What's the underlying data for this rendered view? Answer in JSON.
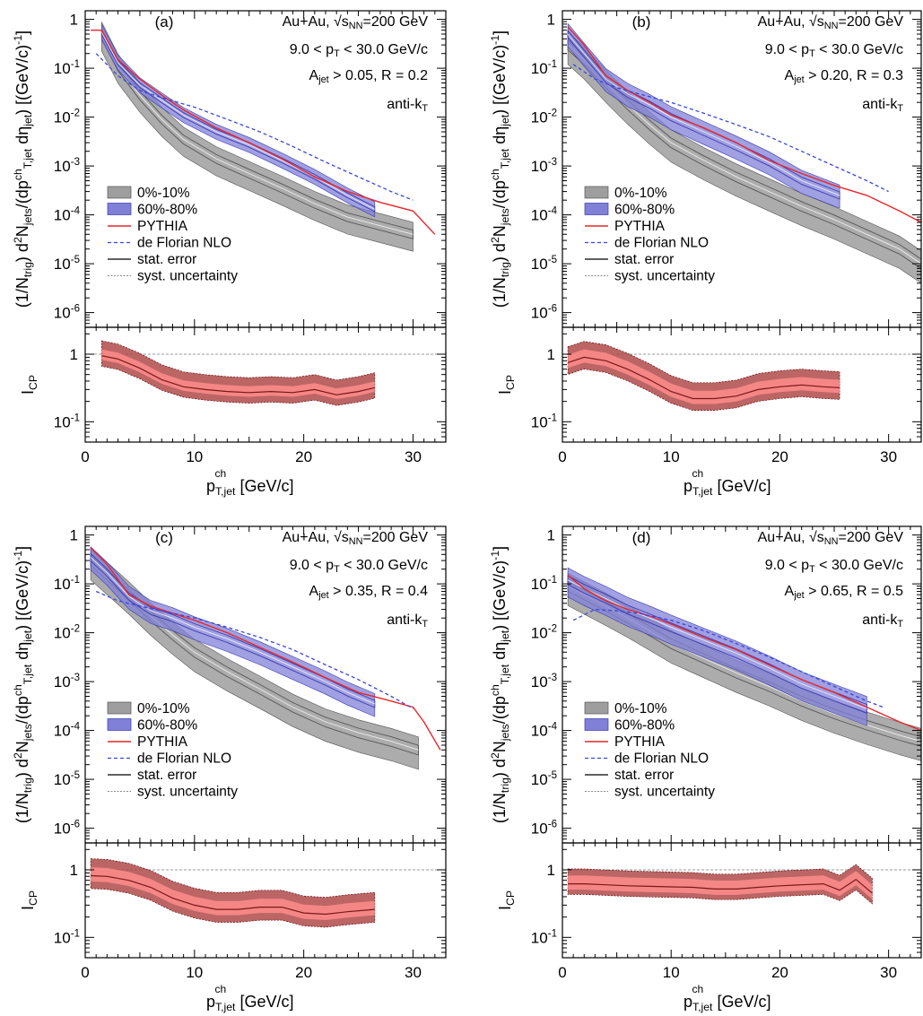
{
  "figure": {
    "ylabel_upper": "(1/N_trig) d²N_jets/(dp^ch_T,jet dη_jet) [(GeV/c)⁻¹]",
    "ylabel_lower": "I_CP",
    "xlabel": "p^ch_T,jet [GeV/c]"
  },
  "legend": [
    "0%-10%",
    "60%-80%",
    "PYTHIA",
    "de Florian NLO",
    "stat. error",
    "syst. uncertainty"
  ],
  "colors": {
    "central": "#555555",
    "central_band": "#9e9e9e",
    "peripheral": "#3a3ab0",
    "peripheral_band": "#8080d8",
    "pythia": "#e8262a",
    "nlo": "#3a46e0",
    "icp_line": "#7a1818",
    "icp_band_dark": "#b04a4a",
    "icp_band_light": "#ff8c8c"
  },
  "chart_data": [
    {
      "type": "line",
      "panel": "(a)",
      "annotations": [
        "Au+Au, √s_NN=200 GeV",
        "9.0 < p_T^trig < 30.0 GeV/c",
        "A_jet > 0.05, R = 0.2",
        "anti-k_T"
      ],
      "xlim": [
        0,
        33
      ],
      "ylim_upper": [
        5e-07,
        1.5
      ],
      "ylog_upper": true,
      "ylim_lower": [
        0.05,
        2.5
      ],
      "ylog_lower": true,
      "xticks": [
        0,
        10,
        20,
        30
      ],
      "series": [
        {
          "name": "0%-10%",
          "x": [
            1.5,
            3,
            5,
            7,
            9,
            12,
            15,
            18,
            21,
            24,
            27,
            30
          ],
          "y": [
            0.5,
            0.11,
            0.028,
            0.009,
            0.0035,
            0.0014,
            0.0007,
            0.00035,
            0.00017,
            9e-05,
            6e-05,
            4e-05
          ],
          "syst_frac": 0.55
        },
        {
          "name": "60%-80%",
          "x": [
            1.5,
            3,
            5,
            7,
            9,
            12,
            15,
            18,
            21,
            24,
            26.5
          ],
          "y": [
            0.55,
            0.13,
            0.045,
            0.022,
            0.011,
            0.005,
            0.0027,
            0.0013,
            0.0006,
            0.00025,
            0.00013
          ],
          "syst_frac": 0.3
        },
        {
          "name": "PYTHIA",
          "x": [
            0.5,
            1.5,
            3,
            5,
            7,
            9,
            12,
            15,
            18,
            21,
            24,
            27,
            30,
            32
          ],
          "y": [
            0.6,
            0.6,
            0.15,
            0.06,
            0.028,
            0.014,
            0.006,
            0.003,
            0.0014,
            0.0006,
            0.0003,
            0.00018,
            0.00012,
            4e-05
          ]
        },
        {
          "name": "de Florian NLO",
          "x": [
            1,
            3,
            5,
            7,
            10,
            13,
            16,
            19,
            22,
            25,
            28,
            30
          ],
          "y": [
            0.2,
            0.07,
            0.035,
            0.025,
            0.016,
            0.009,
            0.005,
            0.0025,
            0.0012,
            0.0006,
            0.0003,
            0.0002
          ]
        }
      ],
      "icp": {
        "x": [
          1.5,
          3,
          5,
          7,
          9,
          11,
          13,
          15,
          17,
          19,
          21,
          23,
          25,
          26.5
        ],
        "y": [
          0.95,
          0.85,
          0.62,
          0.42,
          0.33,
          0.3,
          0.28,
          0.27,
          0.28,
          0.27,
          0.3,
          0.25,
          0.28,
          0.32
        ],
        "frac_outer": 0.55,
        "frac_inner": 0.22
      }
    },
    {
      "type": "line",
      "panel": "(b)",
      "annotations": [
        "Au+Au, √s_NN=200 GeV",
        "9.0 < p_T^trig < 30.0 GeV/c",
        "A_jet > 0.20, R = 0.3",
        "anti-k_T"
      ],
      "xlim": [
        0,
        33
      ],
      "ylim_upper": [
        5e-07,
        1.5
      ],
      "ylog_upper": true,
      "ylim_lower": [
        0.05,
        2.5
      ],
      "ylog_lower": true,
      "xticks": [
        0,
        10,
        20,
        30
      ],
      "series": [
        {
          "name": "0%-10%",
          "x": [
            0.5,
            2,
            4,
            6,
            8,
            10,
            13,
            16,
            19,
            22,
            25,
            28,
            31,
            33
          ],
          "y": [
            0.3,
            0.15,
            0.05,
            0.018,
            0.007,
            0.003,
            0.0013,
            0.0006,
            0.0003,
            0.00015,
            8e-05,
            4e-05,
            2e-05,
            1e-05
          ],
          "syst_frac": 0.6
        },
        {
          "name": "60%-80%",
          "x": [
            0.5,
            2,
            4,
            6,
            8,
            10,
            13,
            16,
            19,
            22,
            25.5
          ],
          "y": [
            0.5,
            0.2,
            0.06,
            0.03,
            0.018,
            0.01,
            0.005,
            0.0025,
            0.0012,
            0.0005,
            0.00025
          ],
          "syst_frac": 0.45
        },
        {
          "name": "PYTHIA",
          "x": [
            0.5,
            2,
            4,
            6,
            8,
            10,
            13,
            16,
            19,
            22,
            25,
            28,
            31,
            33
          ],
          "y": [
            0.7,
            0.3,
            0.07,
            0.035,
            0.02,
            0.011,
            0.006,
            0.003,
            0.0013,
            0.0007,
            0.0004,
            0.00025,
            0.00012,
            7e-05
          ]
        },
        {
          "name": "de Florian NLO",
          "x": [
            1,
            3,
            5,
            7,
            10,
            13,
            16,
            19,
            22,
            25,
            28,
            30
          ],
          "y": [
            0.12,
            0.06,
            0.04,
            0.03,
            0.02,
            0.012,
            0.007,
            0.004,
            0.002,
            0.001,
            0.0005,
            0.0003
          ]
        }
      ],
      "icp": {
        "x": [
          0.5,
          2,
          4,
          6,
          8,
          10,
          12,
          14,
          16,
          18,
          20,
          22,
          24,
          25.5
        ],
        "y": [
          0.75,
          0.9,
          0.8,
          0.6,
          0.42,
          0.28,
          0.22,
          0.22,
          0.24,
          0.3,
          0.33,
          0.35,
          0.33,
          0.32
        ],
        "frac_outer": 0.6,
        "frac_inner": 0.28
      }
    },
    {
      "type": "line",
      "panel": "(c)",
      "annotations": [
        "Au+Au, √s_NN=200 GeV",
        "9.0 < p_T^trig < 30.0 GeV/c",
        "A_jet > 0.35, R = 0.4",
        "anti-k_T"
      ],
      "xlim": [
        0,
        33
      ],
      "ylim_upper": [
        5e-07,
        1.5
      ],
      "ylog_upper": true,
      "ylim_lower": [
        0.05,
        2.5
      ],
      "ylog_lower": true,
      "xticks": [
        0,
        10,
        20,
        30
      ],
      "series": [
        {
          "name": "0%-10%",
          "x": [
            0.5,
            2,
            4,
            6,
            8,
            10,
            13,
            16,
            19,
            22,
            25,
            28,
            30.5
          ],
          "y": [
            0.3,
            0.15,
            0.06,
            0.022,
            0.009,
            0.004,
            0.0016,
            0.0007,
            0.0003,
            0.00015,
            9e-05,
            6e-05,
            4e-05
          ],
          "syst_frac": 0.6
        },
        {
          "name": "60%-80%",
          "x": [
            0.5,
            2,
            4,
            6,
            8,
            10,
            13,
            16,
            19,
            22,
            24,
            26.5
          ],
          "y": [
            0.35,
            0.17,
            0.055,
            0.028,
            0.02,
            0.013,
            0.0075,
            0.004,
            0.002,
            0.001,
            0.0006,
            0.00035
          ],
          "syst_frac": 0.45
        },
        {
          "name": "PYTHIA",
          "x": [
            0.5,
            2,
            4,
            6,
            8,
            10,
            13,
            16,
            19,
            22,
            25,
            28,
            30,
            31,
            32.5
          ],
          "y": [
            0.55,
            0.25,
            0.06,
            0.035,
            0.025,
            0.018,
            0.01,
            0.005,
            0.0025,
            0.0012,
            0.0006,
            0.0004,
            0.0003,
            0.00015,
            4e-05
          ]
        },
        {
          "name": "de Florian NLO",
          "x": [
            1,
            3,
            5,
            7,
            10,
            13,
            16,
            19,
            22,
            25,
            28,
            30
          ],
          "y": [
            0.07,
            0.045,
            0.035,
            0.028,
            0.02,
            0.013,
            0.008,
            0.0045,
            0.0022,
            0.0011,
            0.0005,
            0.00028
          ]
        }
      ],
      "icp": {
        "x": [
          0.5,
          2,
          4,
          6,
          8,
          10,
          12,
          14,
          16,
          18,
          20,
          22,
          24,
          26.5
        ],
        "y": [
          0.82,
          0.8,
          0.7,
          0.55,
          0.38,
          0.3,
          0.26,
          0.26,
          0.28,
          0.28,
          0.23,
          0.22,
          0.24,
          0.26
        ],
        "frac_outer": 0.65,
        "frac_inner": 0.3
      }
    },
    {
      "type": "line",
      "panel": "(d)",
      "annotations": [
        "Au+Au, √s_NN=200 GeV",
        "9.0 < p_T^trig < 30.0 GeV/c",
        "A_jet > 0.65, R = 0.5",
        "anti-k_T"
      ],
      "xlim": [
        0,
        33
      ],
      "ylim_upper": [
        5e-07,
        1.5
      ],
      "ylog_upper": true,
      "ylim_lower": [
        0.05,
        2.5
      ],
      "ylog_lower": true,
      "xticks": [
        0,
        10,
        20,
        30
      ],
      "series": [
        {
          "name": "0%-10%",
          "x": [
            0.5,
            2,
            4,
            6,
            8,
            10,
            13,
            16,
            19,
            22,
            25,
            28,
            31,
            33
          ],
          "y": [
            0.09,
            0.06,
            0.035,
            0.02,
            0.011,
            0.006,
            0.003,
            0.0015,
            0.0008,
            0.0004,
            0.00022,
            0.00013,
            8e-05,
            6e-05
          ],
          "syst_frac": 0.6
        },
        {
          "name": "60%-80%",
          "x": [
            0.5,
            2,
            4,
            6,
            8,
            10,
            13,
            16,
            19,
            22,
            25,
            28
          ],
          "y": [
            0.12,
            0.08,
            0.05,
            0.03,
            0.02,
            0.013,
            0.007,
            0.0038,
            0.0019,
            0.0009,
            0.0005,
            0.00028
          ],
          "syst_frac": 0.55
        },
        {
          "name": "PYTHIA",
          "x": [
            0.5,
            2,
            4,
            6,
            8,
            10,
            13,
            16,
            19,
            22,
            25,
            28,
            31,
            33
          ],
          "y": [
            0.15,
            0.08,
            0.045,
            0.03,
            0.022,
            0.015,
            0.008,
            0.0045,
            0.0022,
            0.0011,
            0.0006,
            0.0003,
            0.00015,
            0.0001
          ]
        },
        {
          "name": "de Florian NLO",
          "x": [
            1,
            3,
            5,
            7,
            10,
            13,
            16,
            19,
            22,
            25,
            28,
            29.5
          ],
          "y": [
            0.018,
            0.03,
            0.028,
            0.025,
            0.018,
            0.011,
            0.006,
            0.0032,
            0.0016,
            0.0008,
            0.0004,
            0.0003
          ]
        }
      ],
      "icp": {
        "x": [
          0.5,
          2,
          4,
          6,
          8,
          10,
          12,
          14,
          16,
          18,
          20,
          22,
          24,
          25.5,
          27,
          28.5
        ],
        "y": [
          0.62,
          0.62,
          0.6,
          0.58,
          0.57,
          0.56,
          0.55,
          0.52,
          0.52,
          0.55,
          0.58,
          0.6,
          0.62,
          0.5,
          0.72,
          0.45
        ],
        "frac_outer": 0.55,
        "frac_inner": 0.3
      }
    }
  ]
}
